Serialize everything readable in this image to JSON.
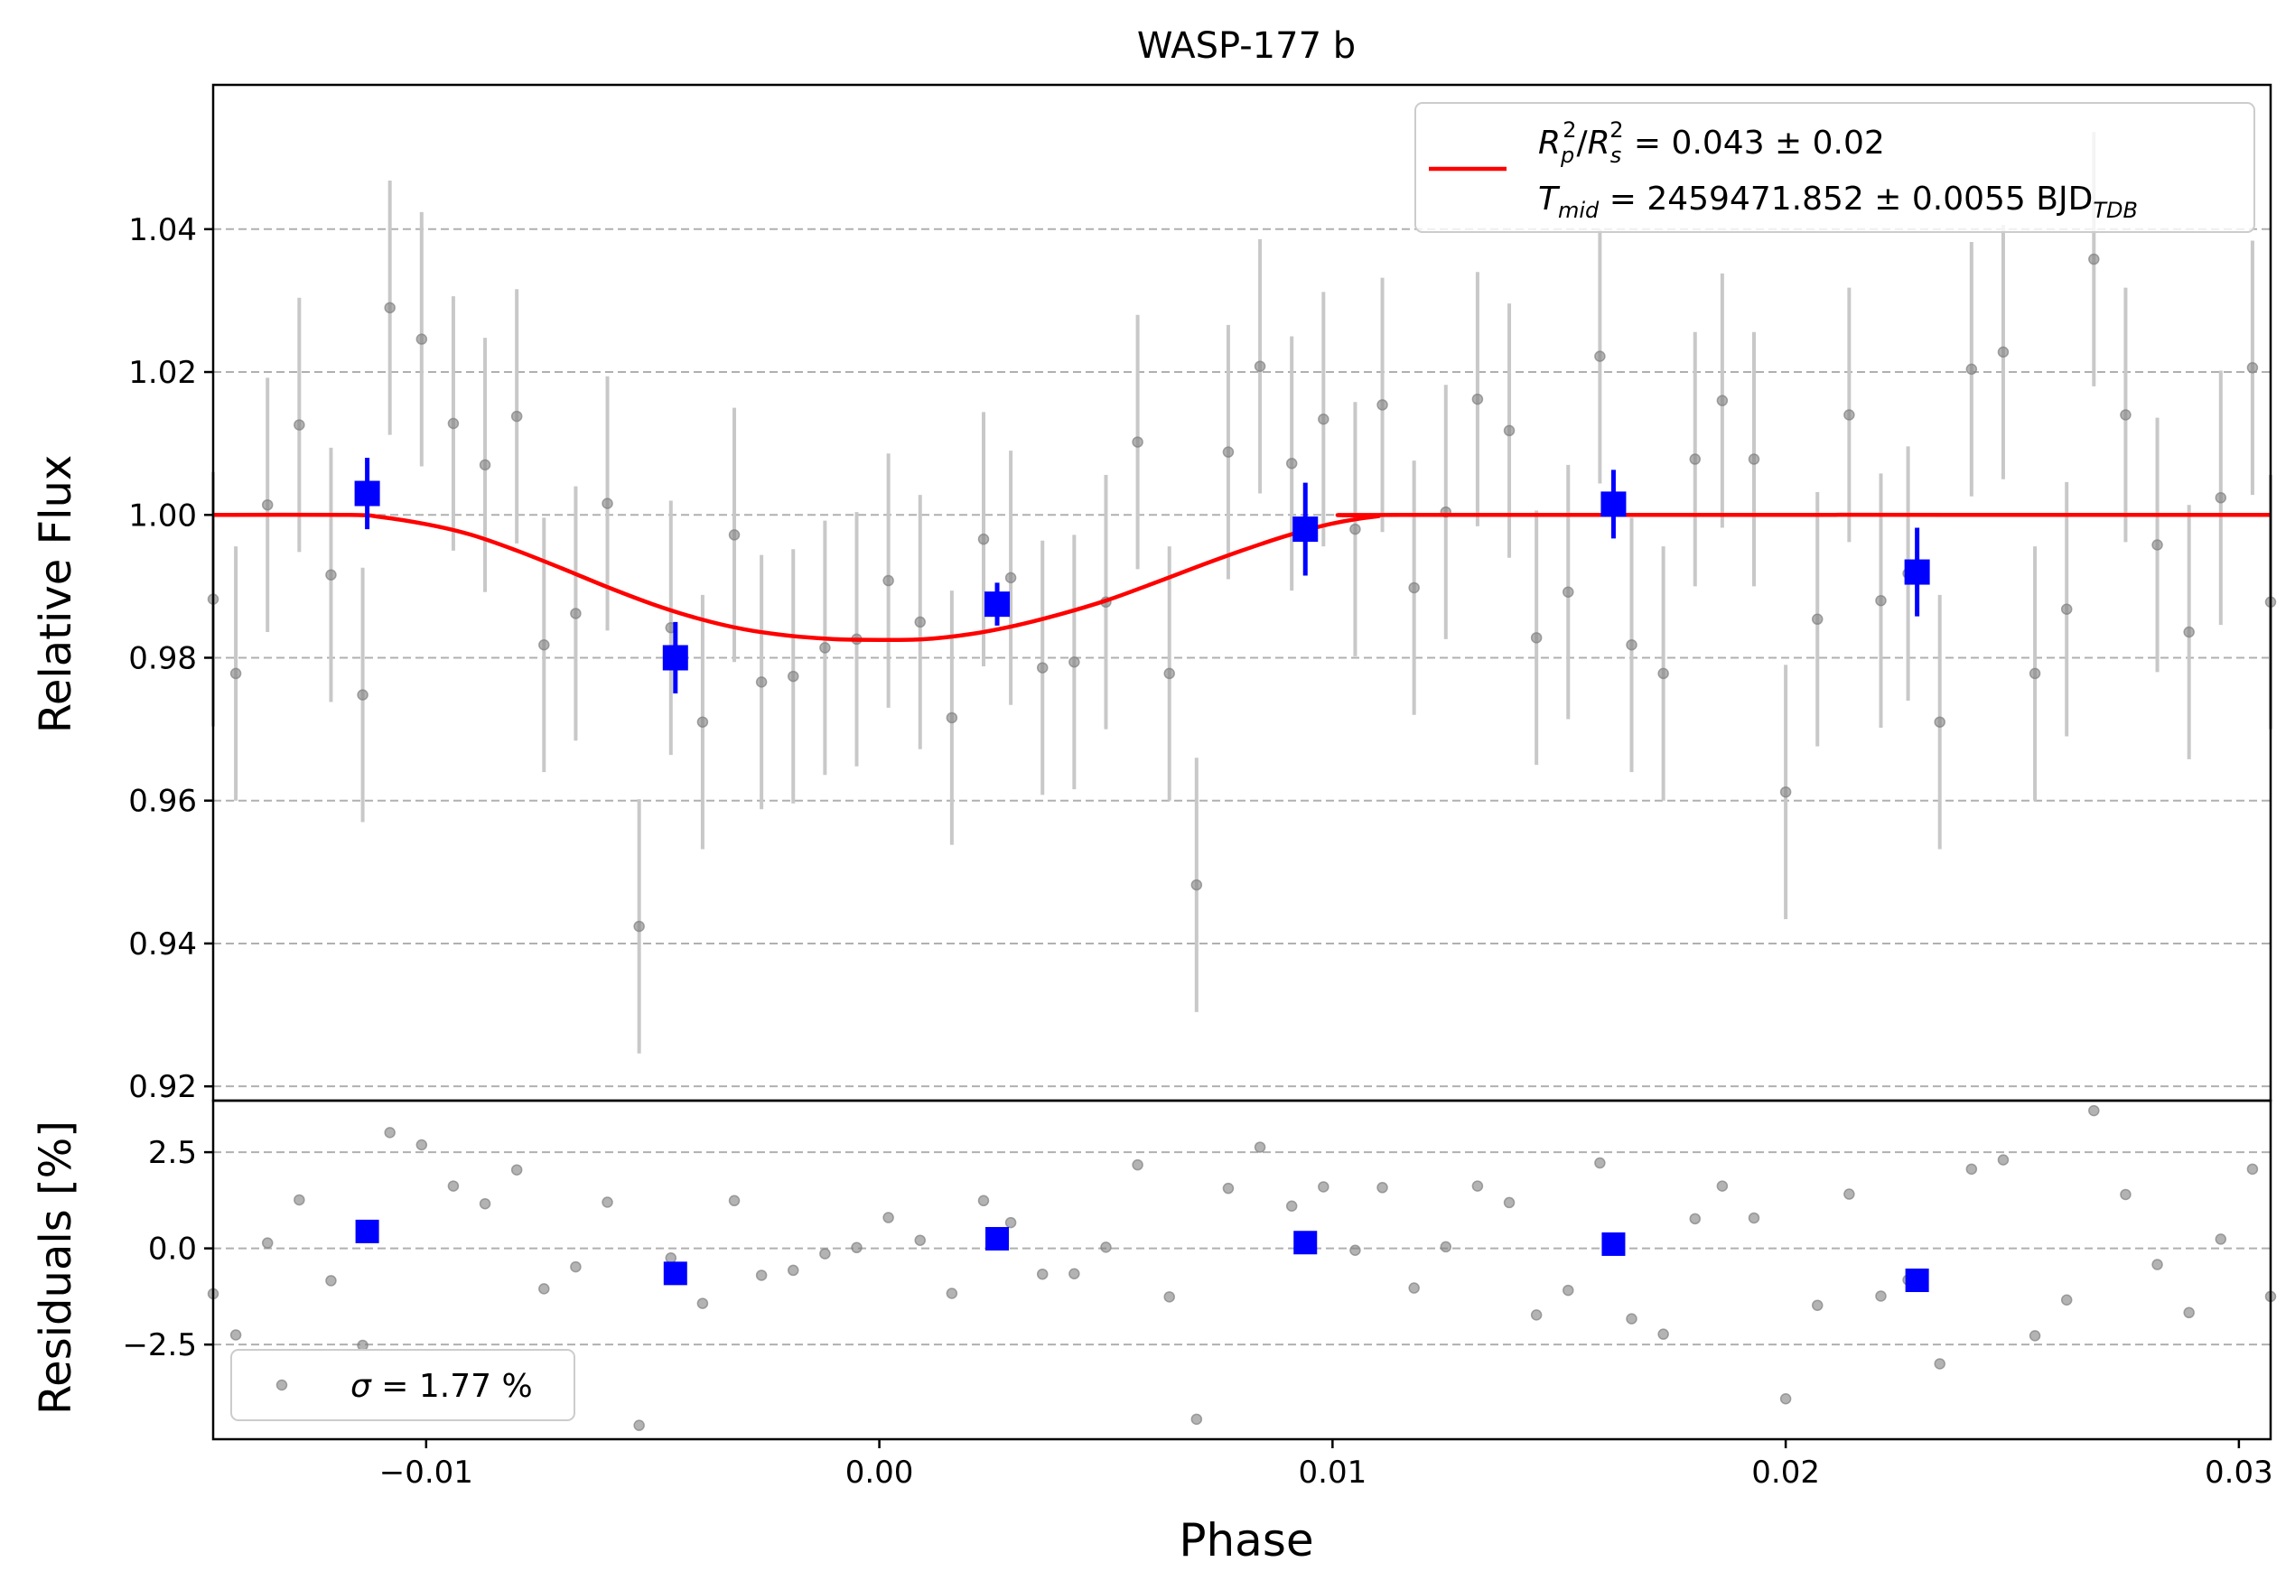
{
  "chart_data": [
    {
      "type": "scatter",
      "title": "WASP-177 b",
      "xlabel": "",
      "ylabel": "Relative Flux",
      "xlim": [
        -0.0147,
        0.0307
      ],
      "ylim": [
        0.918,
        1.0602
      ],
      "yticks": [
        0.92,
        0.94,
        0.96,
        0.98,
        1.0,
        1.02,
        1.04
      ],
      "ytick_labels": [
        "0.92",
        "0.94",
        "0.96",
        "0.98",
        "1.00",
        "1.02",
        "1.04"
      ],
      "grid": "horizontal dashed",
      "legend_position": "top-right",
      "legend": {
        "line1_parts": {
          "r": "R",
          "p": "p",
          "two1": "2",
          "slash": "/",
          "s_main": "R",
          "s": "s",
          "two2": "2",
          "rest": " = 0.043 ± 0.02"
        },
        "line2_parts": {
          "t": "T",
          "mid": "mid",
          "rest": " = 2459471.852 ± 0.0055 BJD",
          "tdb": "TDB"
        }
      },
      "colors": {
        "raw": "#808080",
        "raw_err": "#c8c8c8",
        "binned": "#0000ff",
        "model": "#ff0000",
        "grid": "#b0b0b0"
      },
      "raw_data": {
        "x": [
          -0.0147,
          -0.0142,
          -0.0135,
          -0.0128,
          -0.0121,
          -0.0114,
          -0.0108,
          -0.0101,
          -0.0094,
          -0.0087,
          -0.008,
          -0.0074,
          -0.0067,
          -0.006,
          -0.0053,
          -0.0046,
          -0.0039,
          -0.0032,
          -0.0026,
          -0.0019,
          -0.0012,
          -0.0005,
          0.0002,
          0.0009,
          0.0016,
          0.0023,
          0.0029,
          0.0036,
          0.0043,
          0.005,
          0.0057,
          0.0064,
          0.007,
          0.0077,
          0.0084,
          0.0091,
          0.0098,
          0.0105,
          0.0111,
          0.0118,
          0.0125,
          0.0132,
          0.0139,
          0.0145,
          0.0152,
          0.0159,
          0.0166,
          0.0173,
          0.018,
          0.0186,
          0.0193,
          0.02,
          0.0207,
          0.0214,
          0.0221,
          0.0227,
          0.0234,
          0.0241,
          0.0248,
          0.0255,
          0.0262,
          0.0268,
          0.0275,
          0.0282,
          0.0289,
          0.0296,
          0.0303,
          0.0307
        ],
        "y": [
          0.9882,
          0.9778,
          1.0014,
          1.0126,
          0.9916,
          0.9748,
          1.029,
          1.0246,
          1.0128,
          1.007,
          1.0138,
          0.9818,
          0.9862,
          1.0016,
          0.9424,
          0.9842,
          0.971,
          0.9972,
          0.9766,
          0.9774,
          0.9814,
          0.9826,
          0.9908,
          0.985,
          0.9716,
          0.9966,
          0.9912,
          0.9786,
          0.9794,
          0.9878,
          1.0102,
          0.9778,
          0.9482,
          1.0088,
          1.0208,
          1.0072,
          1.0134,
          0.998,
          1.0154,
          0.9898,
          1.0004,
          1.0162,
          1.0118,
          0.9828,
          0.9892,
          1.0222,
          0.9818,
          0.9778,
          1.0078,
          1.016,
          1.0078,
          0.9612,
          0.9854,
          1.014,
          0.988,
          0.9918,
          0.971,
          1.0204,
          1.0228,
          0.9778,
          0.9868,
          1.0358,
          1.014,
          0.9958,
          0.9836,
          1.0024,
          1.0206,
          0.9878
        ],
        "yerr": 0.0178,
        "residuals_percent": [
          -1.18,
          -2.25,
          0.14,
          1.26,
          -0.84,
          -2.52,
          3.01,
          2.69,
          1.62,
          1.16,
          2.04,
          -1.05,
          -0.48,
          1.2,
          -4.6,
          -0.25,
          -1.43,
          1.24,
          -0.7,
          -0.57,
          -0.14,
          0.02,
          0.8,
          0.21,
          -1.17,
          1.24,
          0.67,
          -0.67,
          -0.66,
          0.03,
          2.17,
          -1.26,
          -4.44,
          1.56,
          2.63,
          1.1,
          1.6,
          -0.05,
          1.58,
          -1.03,
          0.04,
          1.62,
          1.19,
          -1.73,
          -1.09,
          2.22,
          -1.83,
          -2.23,
          0.77,
          1.62,
          0.79,
          -3.91,
          -1.48,
          1.41,
          -1.24,
          -0.82,
          -3.0,
          2.06,
          2.3,
          -2.27,
          -1.34,
          3.58,
          1.4,
          -0.42,
          -1.67,
          0.24,
          2.06,
          -1.25
        ]
      },
      "binned_data": {
        "x": [
          -0.0113,
          -0.0045,
          0.0026,
          0.0094,
          0.0162,
          0.0229
        ],
        "y": [
          1.003,
          0.98,
          0.9875,
          0.998,
          1.0015,
          0.992
        ],
        "yerr": [
          0.005,
          0.005,
          0.003,
          0.0065,
          0.0048,
          0.0062
        ],
        "residuals_percent": [
          0.44,
          -0.65,
          0.25,
          0.15,
          0.11,
          -0.83
        ]
      },
      "model": {
        "x": [
          -0.0147,
          -0.0117,
          -0.011,
          -0.01,
          -0.009,
          -0.008,
          -0.007,
          -0.006,
          -0.005,
          -0.004,
          -0.003,
          -0.002,
          -0.001,
          0.0,
          0.001,
          0.002,
          0.003,
          0.004,
          0.005,
          0.006,
          0.007,
          0.008,
          0.009,
          0.01,
          0.011,
          0.0117,
          0.0307
        ],
        "y": [
          1.0,
          1.0,
          0.9997,
          0.9987,
          0.9972,
          0.995,
          0.9925,
          0.9899,
          0.9875,
          0.9855,
          0.984,
          0.9831,
          0.9826,
          0.9825,
          0.9826,
          0.9833,
          0.9845,
          0.9861,
          0.988,
          0.9903,
          0.9927,
          0.995,
          0.9971,
          0.9988,
          0.9998,
          1.0,
          1.0
        ]
      }
    },
    {
      "type": "scatter",
      "title": "",
      "xlabel": "Phase",
      "ylabel": "Residuals [%]",
      "xlim": [
        -0.0147,
        0.0307
      ],
      "ylim": [
        -4.96,
        3.84
      ],
      "xticks": [
        -0.01,
        0.0,
        0.01,
        0.02,
        0.03
      ],
      "xtick_labels": [
        "−0.01",
        "0.00",
        "0.01",
        "0.02",
        "0.03"
      ],
      "yticks": [
        -2.5,
        0.0,
        2.5
      ],
      "ytick_labels": [
        "−2.5",
        "0.0",
        "2.5"
      ],
      "grid": "horizontal dashed",
      "legend_position": "bottom-left",
      "legend": {
        "sigma": "σ",
        "rest": " = 1.77 %"
      }
    }
  ]
}
